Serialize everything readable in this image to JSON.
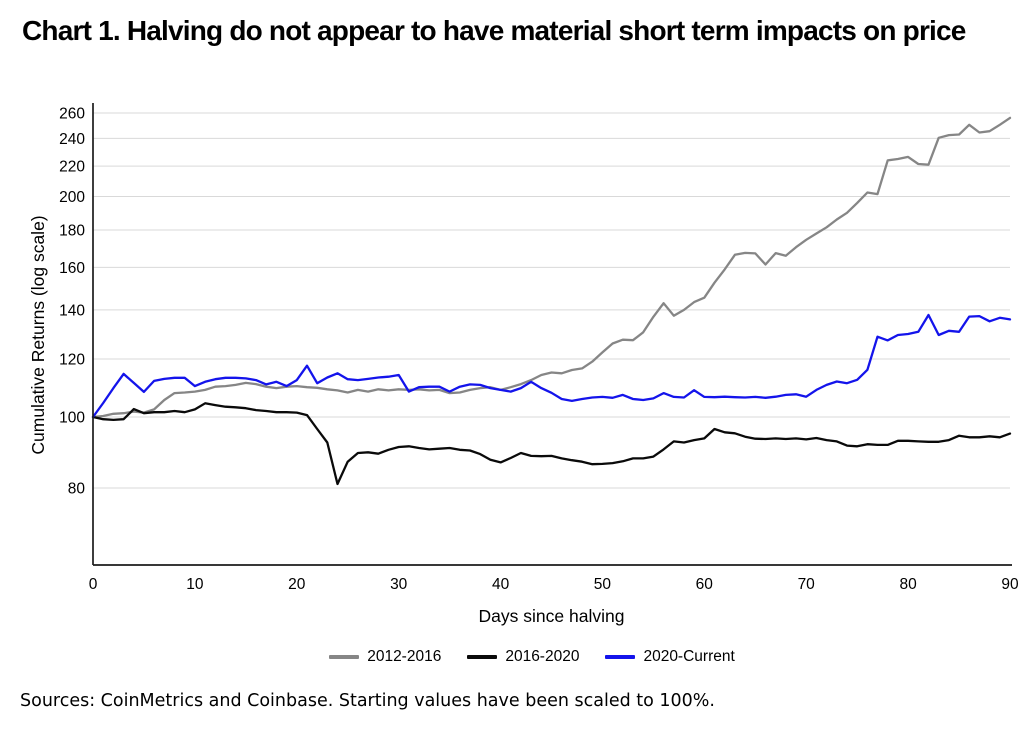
{
  "page": {
    "title": "Chart 1. Halving do not appear to have material short term impacts on price",
    "source_note": "Sources: CoinMetrics and Coinbase. Starting values have been scaled to 100%."
  },
  "chart_data": {
    "type": "line",
    "title": "Chart 1. Halving do not appear to have material short term impacts on price",
    "xlabel": "Days since halving",
    "ylabel": "Cumulative Returns (log scale)",
    "y_scale": "log",
    "grid": "horizontal",
    "legend_position": "bottom",
    "x_range": [
      0,
      90
    ],
    "x_start": 0,
    "x_step": 1,
    "x_ticks": [
      0,
      10,
      20,
      30,
      40,
      50,
      60,
      70,
      80,
      90
    ],
    "y_ticks": [
      80,
      100,
      120,
      140,
      160,
      180,
      200,
      220,
      240,
      260
    ],
    "y_domain": [
      62.8,
      266.6
    ],
    "series": [
      {
        "name": "2012-2016",
        "color": "#868686",
        "values": [
          100,
          100.3,
          101,
          101.2,
          101.7,
          101.4,
          102.4,
          105.5,
          107.8,
          108,
          108.3,
          108.9,
          110,
          110.2,
          110.6,
          111.3,
          110.9,
          110,
          109.5,
          110,
          110.2,
          109.8,
          109.6,
          109.1,
          108.7,
          108,
          108.9,
          108.3,
          109.1,
          108.7,
          109.1,
          108.9,
          109.1,
          108.7,
          108.9,
          107.8,
          108,
          108.9,
          109.5,
          109.8,
          108.9,
          109.8,
          110.9,
          112.3,
          114.1,
          115,
          114.7,
          115.9,
          116.5,
          119,
          122.5,
          126,
          127.5,
          127.3,
          130.5,
          137,
          143,
          137.5,
          140,
          143.5,
          145.5,
          152.5,
          159,
          166.5,
          167.5,
          167.2,
          161.5,
          167.4,
          166,
          170.5,
          174.5,
          178,
          181.5,
          186,
          190,
          196,
          202.5,
          201.5,
          224,
          225,
          226.5,
          221.5,
          221,
          240.5,
          242.5,
          243,
          250.5,
          244.5,
          245.5,
          250.5,
          256
        ]
      },
      {
        "name": "2016-2020",
        "color": "#0a0a0a",
        "values": [
          100,
          99.3,
          99.1,
          99.3,
          102.5,
          101.2,
          101.5,
          101.5,
          101.9,
          101.5,
          102.4,
          104.4,
          103.8,
          103.3,
          103.1,
          102.8,
          102.2,
          101.9,
          101.5,
          101.5,
          101.4,
          100.6,
          96.3,
          92.3,
          81,
          86.9,
          89.3,
          89.5,
          89.1,
          90.2,
          91,
          91.2,
          90.7,
          90.3,
          90.5,
          90.7,
          90.2,
          90,
          89,
          87.4,
          86.7,
          87.9,
          89.3,
          88.5,
          88.4,
          88.5,
          87.8,
          87.3,
          86.9,
          86.2,
          86.3,
          86.5,
          87,
          87.8,
          87.8,
          88.3,
          90.3,
          92.6,
          92.3,
          93,
          93.5,
          96.3,
          95.3,
          95,
          94,
          93.4,
          93.3,
          93.5,
          93.3,
          93.5,
          93.2,
          93.6,
          93,
          92.6,
          91.4,
          91.2,
          91.8,
          91.6,
          91.6,
          92.8,
          92.8,
          92.6,
          92.5,
          92.5,
          93,
          94.3,
          93.8,
          93.8,
          94.1,
          93.8,
          94.9
        ]
      },
      {
        "name": "2020-Current",
        "color": "#1414eb",
        "values": [
          100,
          104.5,
          109.5,
          114.5,
          111.3,
          108.2,
          112,
          112.7,
          113.1,
          113.1,
          110.2,
          111.7,
          112.6,
          113.1,
          113.1,
          112.9,
          112.3,
          110.8,
          111.7,
          110.2,
          112.3,
          117.5,
          111.2,
          113.2,
          114.7,
          112.6,
          112.3,
          112.7,
          113.2,
          113.5,
          114.1,
          108.3,
          109.8,
          110,
          110,
          108.3,
          110,
          110.8,
          110.6,
          109.5,
          108.9,
          108.3,
          109.5,
          111.7,
          109.5,
          107.9,
          105.8,
          105.2,
          105.8,
          106.3,
          106.5,
          106.2,
          107.2,
          105.8,
          105.5,
          106,
          107.8,
          106.5,
          106.3,
          108.8,
          106.5,
          106.4,
          106.6,
          106.4,
          106.3,
          106.5,
          106.2,
          106.6,
          107.2,
          107.4,
          106.6,
          108.9,
          110.6,
          111.8,
          111.2,
          112.4,
          116,
          128.7,
          127.2,
          129.4,
          129.8,
          130.7,
          137.8,
          129.4,
          131.1,
          130.7,
          137.1,
          137.3,
          135.1,
          136.6,
          135.9
        ]
      }
    ]
  }
}
